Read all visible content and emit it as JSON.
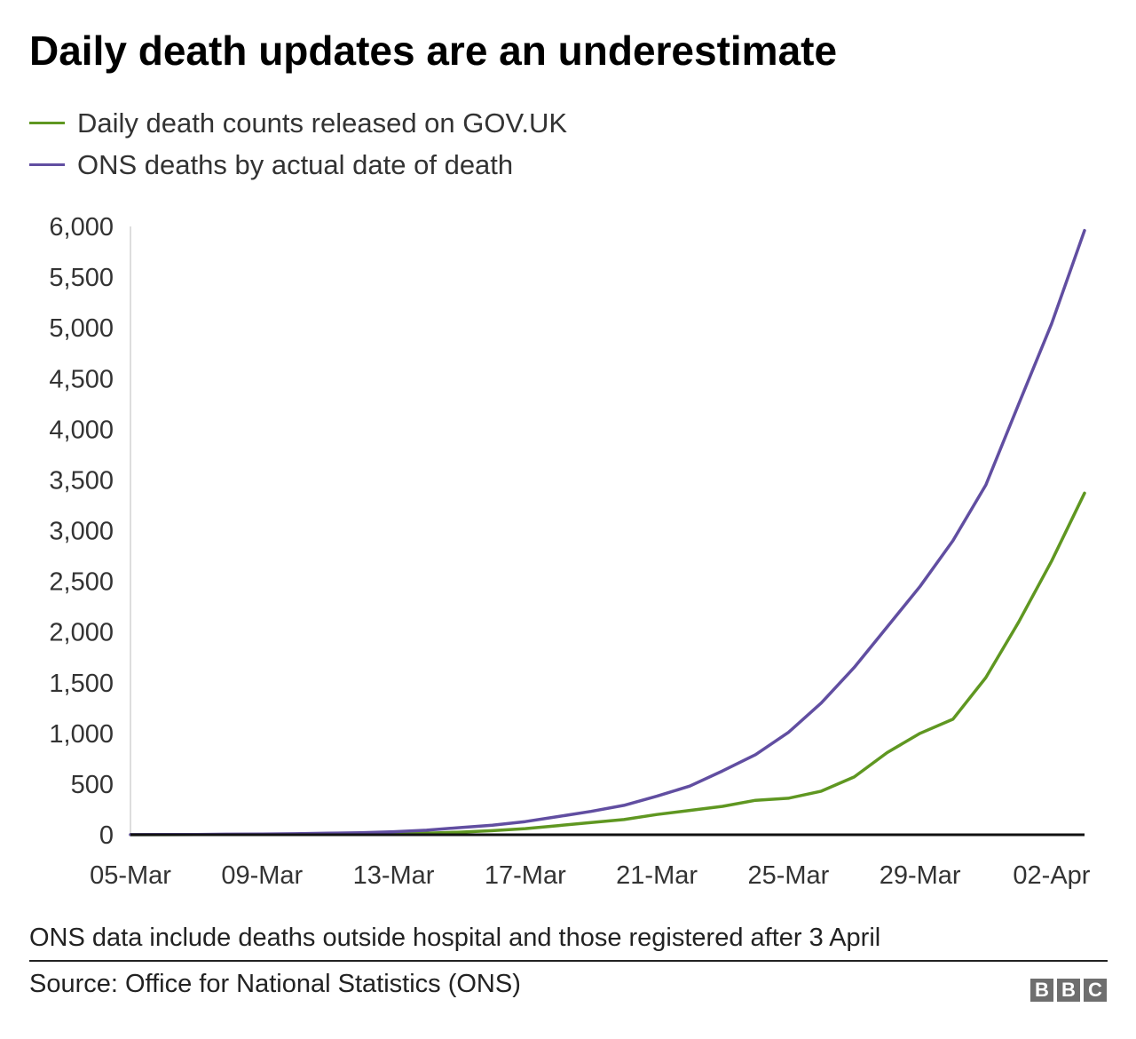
{
  "chart_data": {
    "type": "line",
    "title": "Daily death updates are an underestimate",
    "xlabel": "",
    "ylabel": "",
    "ylim": [
      0,
      6000
    ],
    "yticks": [
      "0",
      "500",
      "1,000",
      "1,500",
      "2,000",
      "2,500",
      "3,000",
      "3,500",
      "4,000",
      "4,500",
      "5,000",
      "5,500",
      "6,000"
    ],
    "xtick_labels": [
      "05-Mar",
      "09-Mar",
      "13-Mar",
      "17-Mar",
      "21-Mar",
      "25-Mar",
      "29-Mar",
      "02-Apr"
    ],
    "x": [
      "05-Mar",
      "06-Mar",
      "07-Mar",
      "08-Mar",
      "09-Mar",
      "10-Mar",
      "11-Mar",
      "12-Mar",
      "13-Mar",
      "14-Mar",
      "15-Mar",
      "16-Mar",
      "17-Mar",
      "18-Mar",
      "19-Mar",
      "20-Mar",
      "21-Mar",
      "22-Mar",
      "23-Mar",
      "24-Mar",
      "25-Mar",
      "26-Mar",
      "27-Mar",
      "28-Mar",
      "29-Mar",
      "30-Mar",
      "31-Mar",
      "01-Apr",
      "02-Apr",
      "03-Apr"
    ],
    "grid": false,
    "legend_position": "top-left",
    "series": [
      {
        "name": "Daily death counts released on GOV.UK",
        "color": "#5f9721",
        "values": [
          1,
          1,
          2,
          3,
          4,
          5,
          6,
          8,
          10,
          15,
          25,
          40,
          60,
          90,
          120,
          150,
          200,
          240,
          280,
          340,
          360,
          430,
          570,
          810,
          1000,
          1140,
          1550,
          2100,
          2700,
          3370
        ]
      },
      {
        "name": "ONS deaths by actual date of death",
        "color": "#614ea1",
        "values": [
          1,
          2,
          3,
          5,
          7,
          10,
          15,
          20,
          30,
          45,
          70,
          95,
          130,
          180,
          230,
          290,
          380,
          480,
          630,
          790,
          1010,
          1300,
          1650,
          2050,
          2450,
          2900,
          3450,
          4250,
          5040,
          5960
        ]
      }
    ]
  },
  "note": "ONS data include deaths outside hospital and those registered after 3 April",
  "source": "Source: Office for National Statistics (ONS)",
  "logo": [
    "B",
    "B",
    "C"
  ]
}
